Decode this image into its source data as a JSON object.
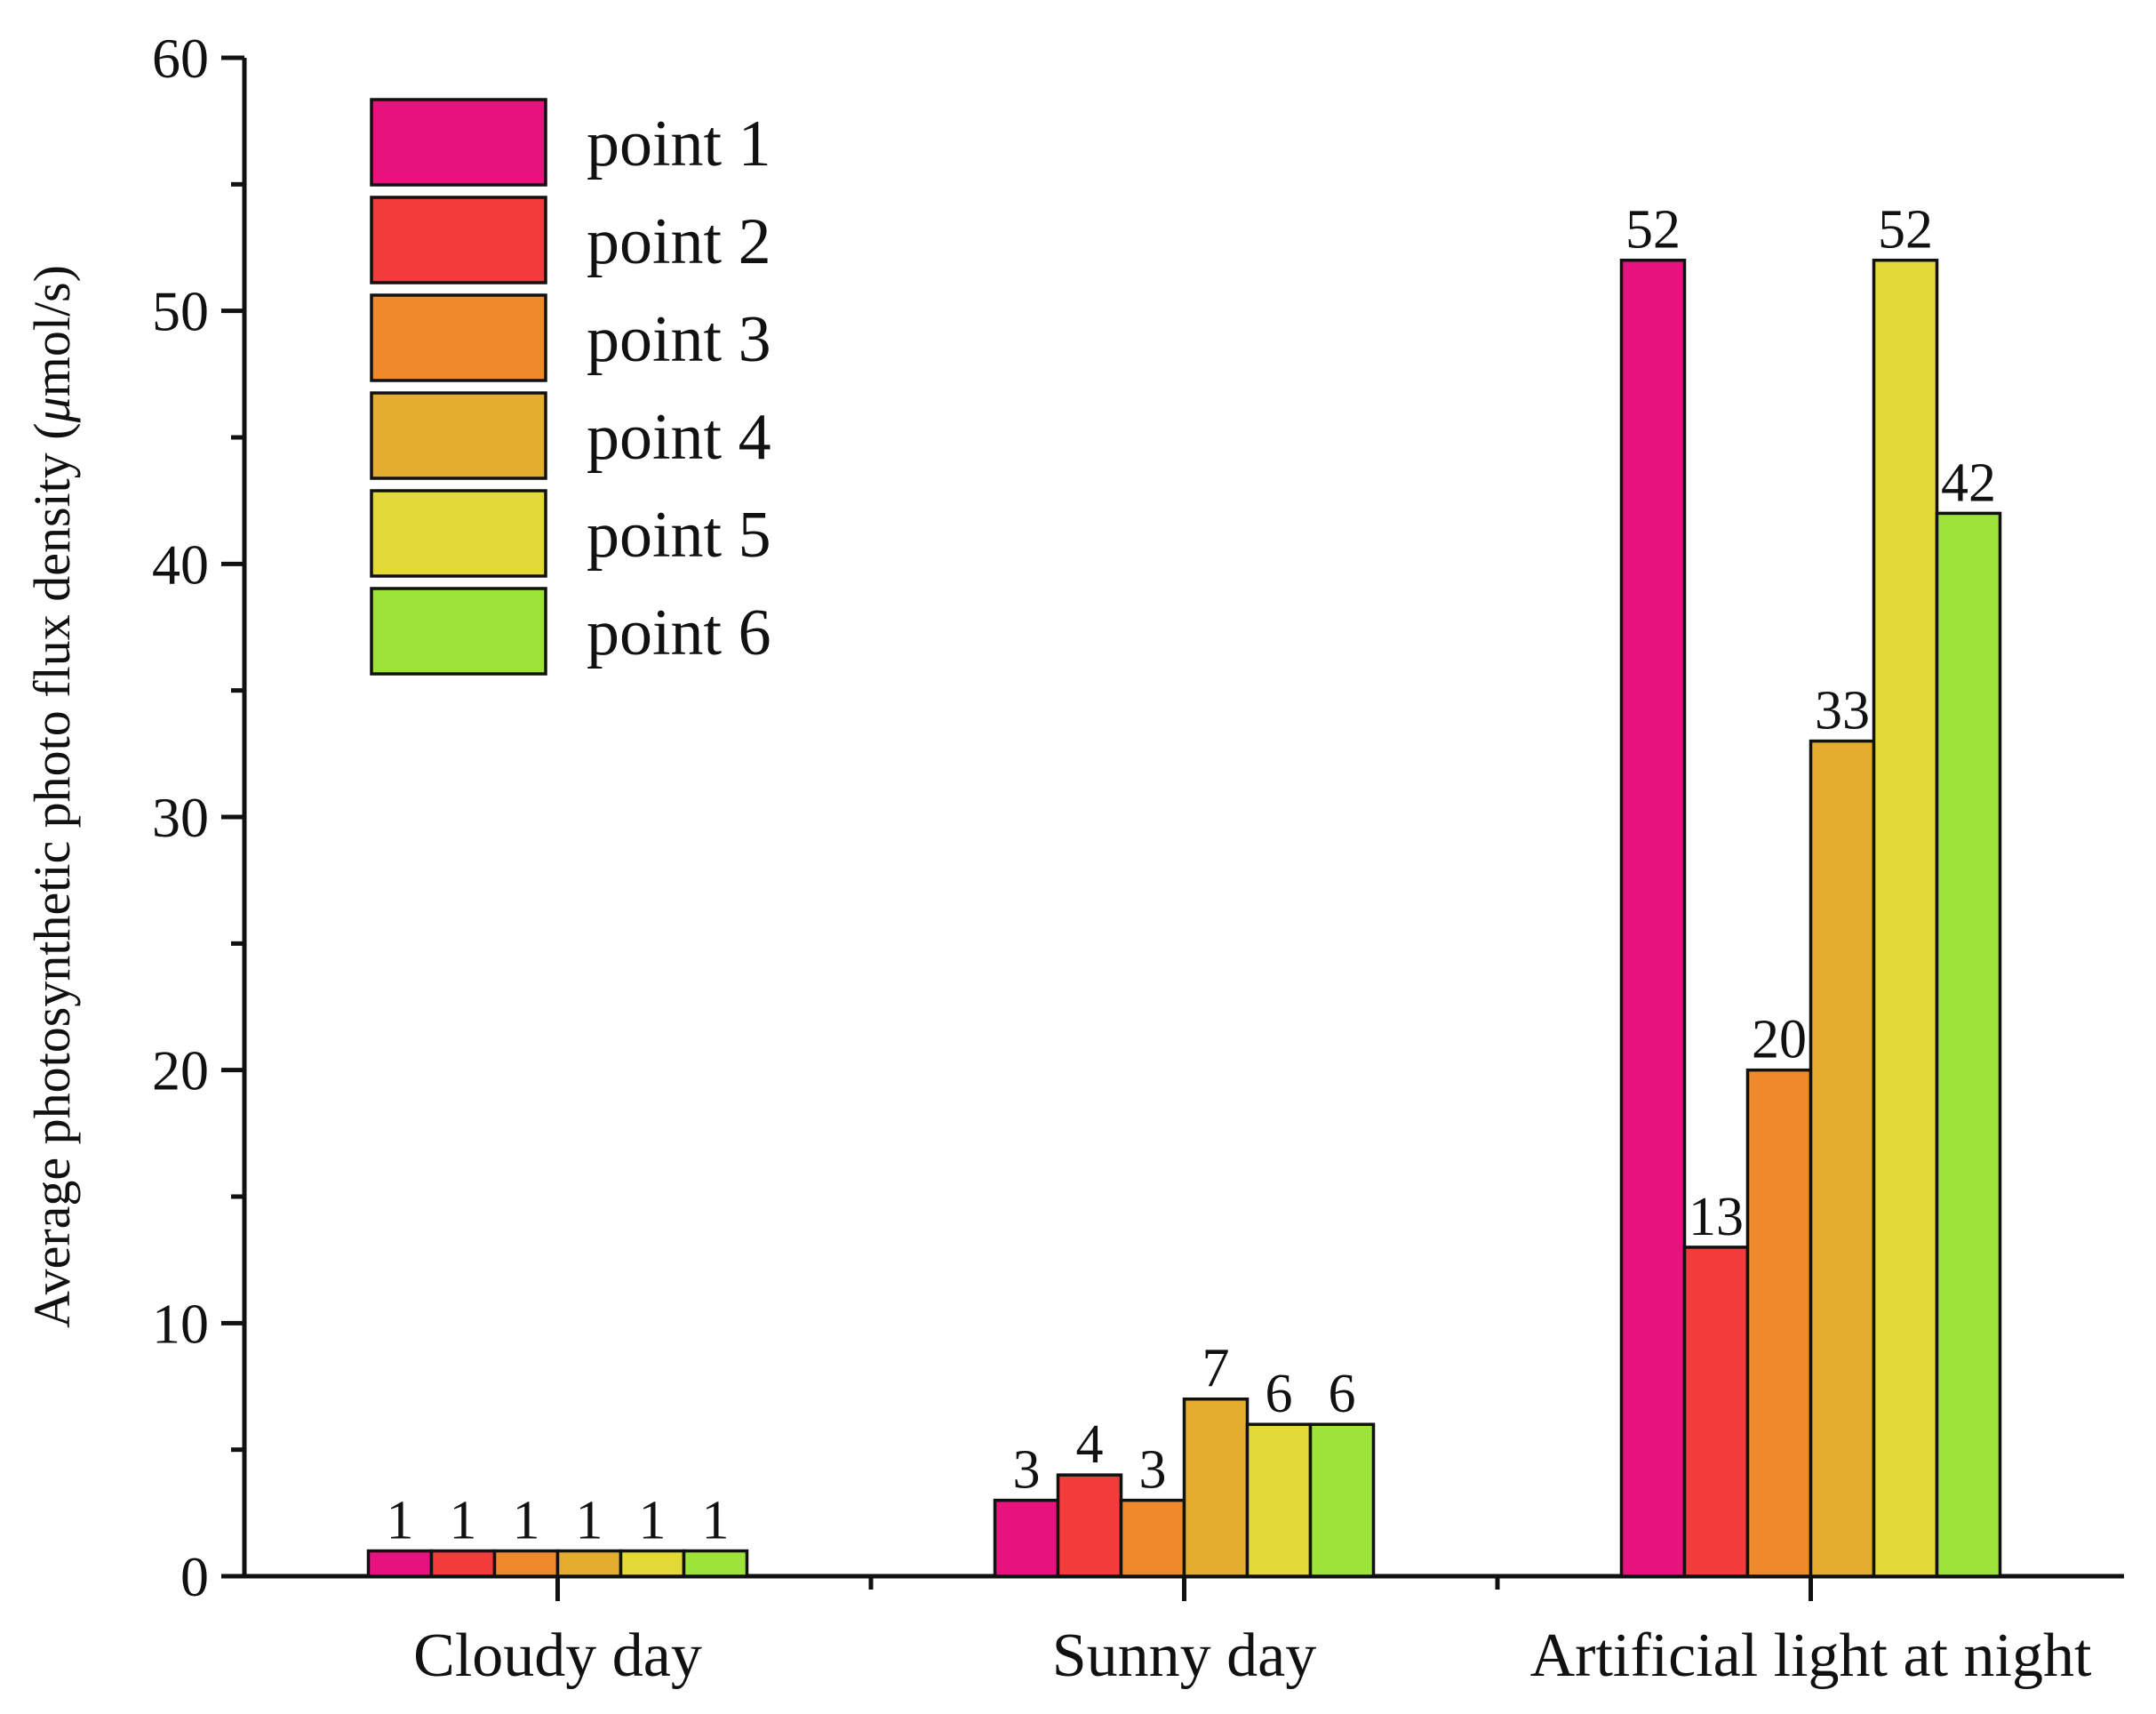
{
  "chart_data": {
    "type": "bar",
    "title": "",
    "xlabel": "",
    "ylabel": "Average photosynthetic photo flux density (",
    "ylabel_symbol": "μ",
    "ylabel_unit": "mol/s)",
    "ylim": [
      0,
      60
    ],
    "yticks": [
      0,
      10,
      20,
      30,
      40,
      50,
      60
    ],
    "ytick_labels": [
      "0",
      "10",
      "20",
      "30",
      "40",
      "50",
      "60"
    ],
    "categories": [
      "Cloudy day",
      "Sunny day",
      "Artificial light at night"
    ],
    "legend_position": "top-left",
    "grid": false,
    "series": [
      {
        "name": "point 1",
        "color": "#E8127F",
        "values": [
          1,
          3,
          52
        ]
      },
      {
        "name": "point 2",
        "color": "#F23B3B",
        "values": [
          1,
          4,
          13
        ]
      },
      {
        "name": "point 3",
        "color": "#EE8A2C",
        "values": [
          1,
          3,
          20
        ]
      },
      {
        "name": "point 4",
        "color": "#E3AE30",
        "values": [
          1,
          7,
          33
        ]
      },
      {
        "name": "point 5",
        "color": "#E3DA38",
        "values": [
          1,
          6,
          52
        ]
      },
      {
        "name": "point 6",
        "color": "#9EE33A",
        "values": [
          1,
          6,
          42
        ]
      }
    ]
  }
}
